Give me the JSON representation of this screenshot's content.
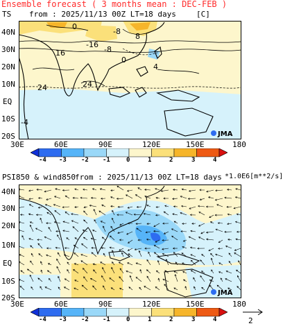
{
  "title": "Ensemble forecast ( 3 months mean : DEC-FEB )",
  "top_panel": {
    "var": "TS",
    "from_text": "from : 2025/11/13 00Z LT=18 days",
    "unit": "[C]",
    "lat_labels": [
      "40N",
      "30N",
      "20N",
      "10N",
      "EQ",
      "10S",
      "20S"
    ],
    "lon_labels": [
      "30E",
      "60E",
      "90E",
      "120E",
      "150E",
      "180"
    ],
    "contour_labels": [
      "0",
      "-8",
      "-16",
      "-8",
      "16",
      "24",
      "24",
      "4",
      "-4",
      "8",
      "0"
    ],
    "logo": "JMA"
  },
  "bottom_panel": {
    "var": "PSI850 & wind850",
    "from_text": "from : 2025/11/13 00Z LT=18 days",
    "unit": "*1.0E6[m**2/s]",
    "lat_labels": [
      "40N",
      "30N",
      "20N",
      "10N",
      "EQ",
      "10S",
      "20S"
    ],
    "lon_labels": [
      "30E",
      "60E",
      "90E",
      "120E",
      "150E",
      "180"
    ],
    "logo": "JMA",
    "ref_vector_label": "2"
  },
  "colorbar": {
    "labels": [
      "-4",
      "-3",
      "-2",
      "-1",
      "0",
      "1",
      "2",
      "3",
      "4"
    ],
    "colors": [
      "#1030d8",
      "#2e6cf0",
      "#56b4f8",
      "#9ad8f8",
      "#d6f2fb",
      "#fdf6cc",
      "#fbe07a",
      "#f6b52a",
      "#ee5a14",
      "#d81010"
    ]
  }
}
